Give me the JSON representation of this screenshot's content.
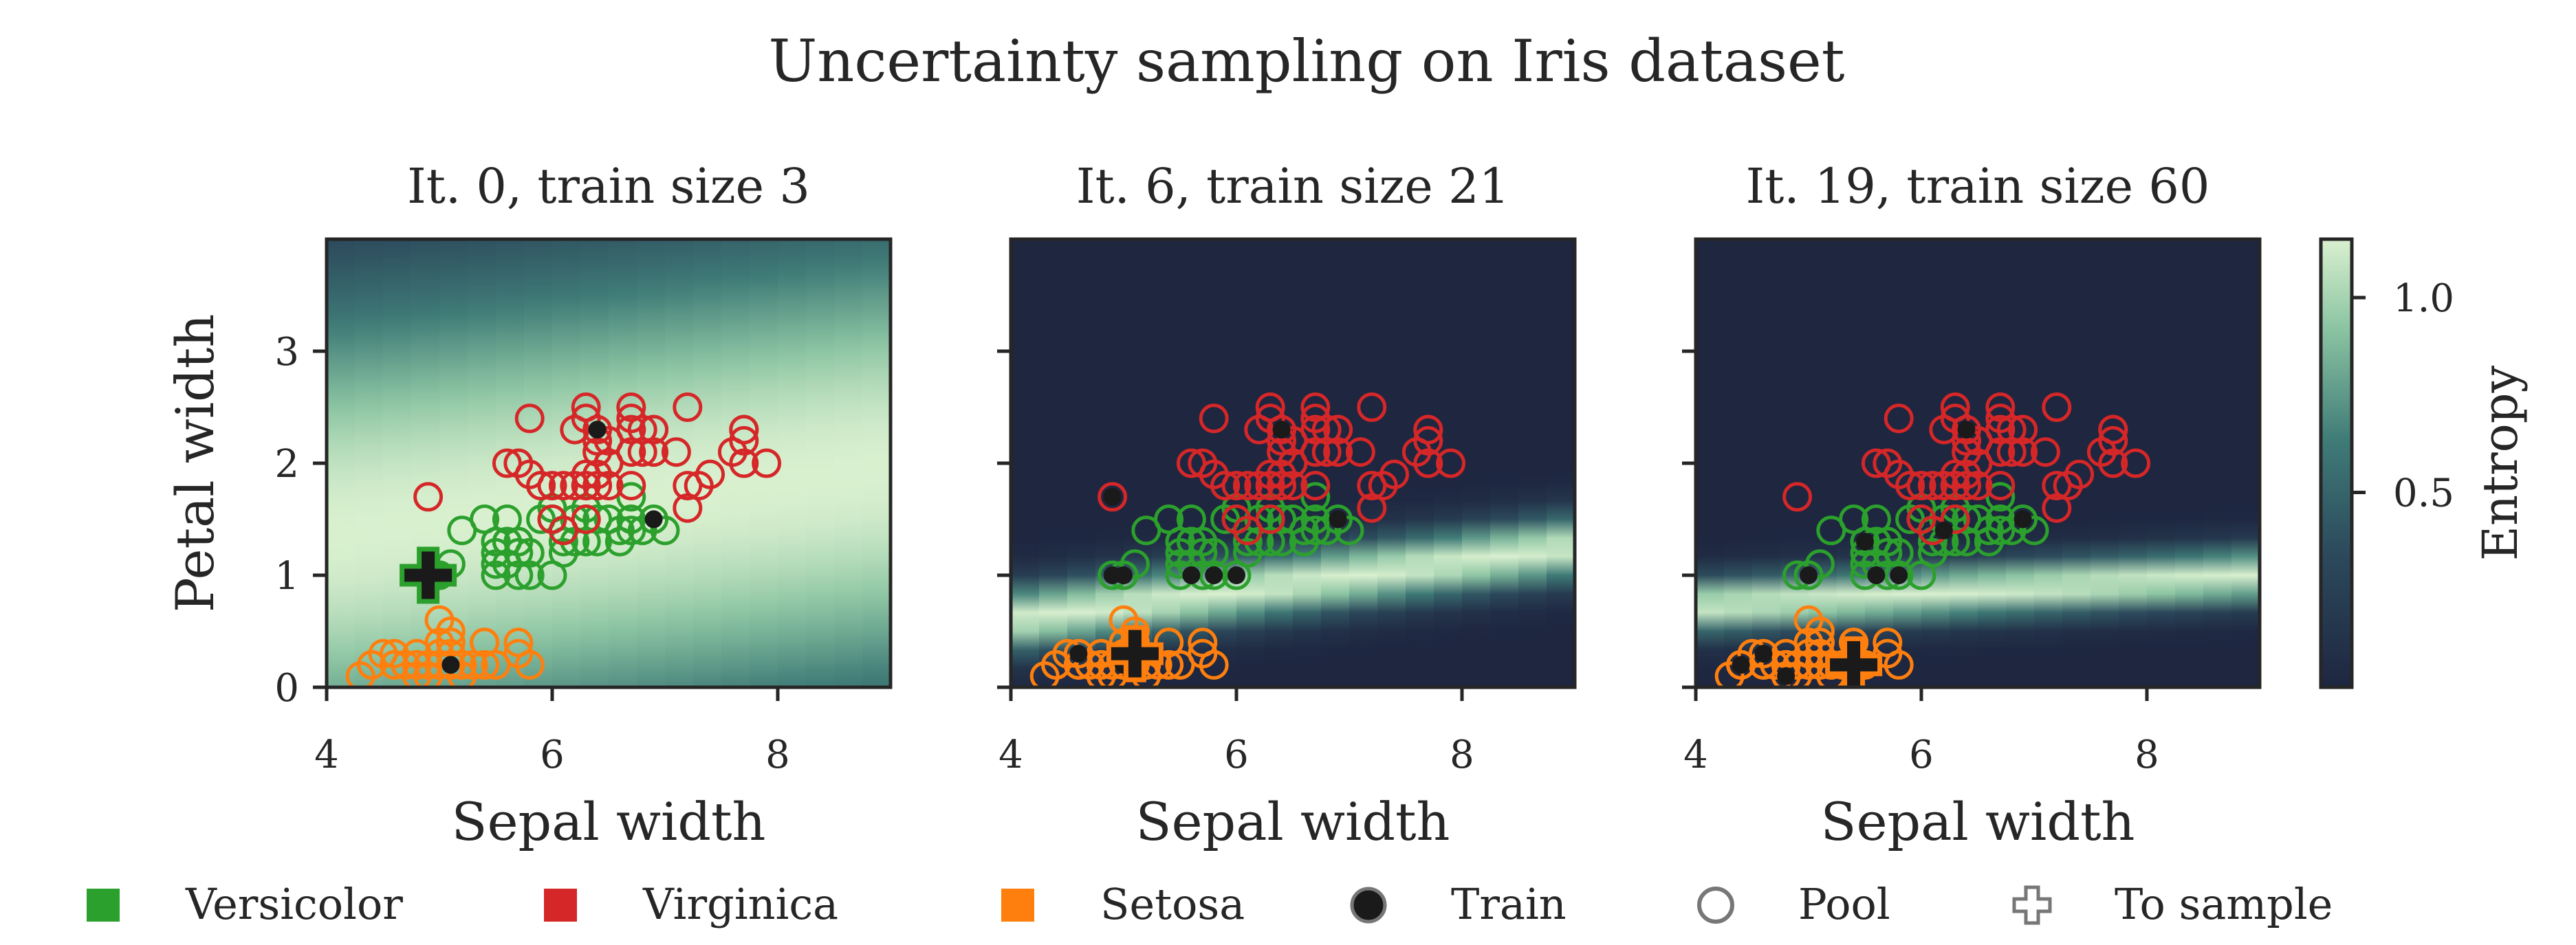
{
  "figure": {
    "title": "Uncertainty sampling on Iris dataset",
    "colorbar_label": "Entropy",
    "colorbar_ticks": [
      "0.5",
      "1.0"
    ],
    "colorbar_tick_values": [
      0.5,
      1.0
    ],
    "colorbar_range": [
      0.0,
      1.15
    ]
  },
  "colors": {
    "versicolor": "#2ca02c",
    "virginica": "#d62728",
    "setosa": "#ff7f0e",
    "train": "#1a1a1a",
    "pool": "#777777",
    "axis": "#262626",
    "entropy_low": "#1e2640",
    "entropy_high": "#d4edc8"
  },
  "legend": [
    {
      "label": "Versicolor",
      "marker": "square",
      "color": "#2ca02c"
    },
    {
      "label": "Virginica",
      "marker": "square",
      "color": "#d62728"
    },
    {
      "label": "Setosa",
      "marker": "square",
      "color": "#ff7f0e"
    },
    {
      "label": "Train",
      "marker": "filled-circle",
      "color": "#1a1a1a"
    },
    {
      "label": "Pool",
      "marker": "open-circle",
      "color": "#777777"
    },
    {
      "label": "To sample",
      "marker": "plus",
      "color": "#777777"
    }
  ],
  "chart_data": [
    {
      "type": "scatter",
      "title": "It. 0, train size 3",
      "xlabel": "Sepal width",
      "ylabel": "Petal width",
      "xlim": [
        4,
        9
      ],
      "ylim": [
        0,
        4
      ],
      "xticks": [
        "4",
        "6",
        "8"
      ],
      "xtick_values": [
        4,
        6,
        8
      ],
      "yticks": [
        "0",
        "1",
        "2",
        "3"
      ],
      "ytick_values": [
        0,
        1,
        2,
        3
      ],
      "background": {
        "boundary": [
          [
            4,
            1.35
          ],
          [
            9,
            1.95
          ]
        ],
        "width": 2.4,
        "peak": 1.0
      },
      "train": [
        [
          5.1,
          0.2
        ],
        [
          6.9,
          1.5
        ],
        [
          6.4,
          2.3
        ]
      ],
      "to_sample": [
        [
          4.9,
          1.0
        ]
      ],
      "to_sample_class": "versicolor"
    },
    {
      "type": "scatter",
      "title": "It. 6, train size 21",
      "xlabel": "Sepal width",
      "xlim": [
        4,
        9
      ],
      "ylim": [
        0,
        4
      ],
      "xticks": [
        "4",
        "6",
        "8"
      ],
      "xtick_values": [
        4,
        6,
        8
      ],
      "yticks": [],
      "ytick_values": [
        0,
        1,
        2,
        3
      ],
      "background": {
        "boundary": [
          [
            4,
            0.6
          ],
          [
            9,
            1.25
          ]
        ],
        "width": 0.3,
        "peak": 1.0
      },
      "train": [
        [
          4.6,
          0.3
        ],
        [
          5.0,
          0.2
        ],
        [
          4.9,
          1.0
        ],
        [
          5.0,
          1.0
        ],
        [
          5.6,
          1.0
        ],
        [
          5.8,
          1.0
        ],
        [
          6.0,
          1.0
        ],
        [
          6.9,
          1.5
        ],
        [
          6.4,
          2.3
        ],
        [
          4.9,
          1.7
        ]
      ],
      "to_sample": [
        [
          5.1,
          0.3
        ]
      ],
      "to_sample_class": "setosa"
    },
    {
      "type": "scatter",
      "title": "It. 19, train size 60",
      "xlabel": "Sepal width",
      "xlim": [
        4,
        9
      ],
      "ylim": [
        0,
        4
      ],
      "xticks": [
        "4",
        "6",
        "8"
      ],
      "xtick_values": [
        4,
        6,
        8
      ],
      "yticks": [],
      "ytick_values": [
        0,
        1,
        2,
        3
      ],
      "background": {
        "boundary": [
          [
            4,
            0.72
          ],
          [
            9,
            1.0
          ]
        ],
        "width": 0.25,
        "peak": 1.0
      },
      "train": [
        [
          4.4,
          0.2
        ],
        [
          4.6,
          0.3
        ],
        [
          4.8,
          0.1
        ],
        [
          5.0,
          1.0
        ],
        [
          5.5,
          1.3
        ],
        [
          5.6,
          1.0
        ],
        [
          5.8,
          1.0
        ],
        [
          6.9,
          1.5
        ],
        [
          6.4,
          2.3
        ],
        [
          6.2,
          1.4
        ]
      ],
      "to_sample": [
        [
          5.4,
          0.2
        ]
      ],
      "to_sample_class": "setosa"
    }
  ],
  "classes": {
    "setosa": [
      [
        5.1,
        0.2
      ],
      [
        4.9,
        0.2
      ],
      [
        4.7,
        0.2
      ],
      [
        4.6,
        0.2
      ],
      [
        5.0,
        0.2
      ],
      [
        5.4,
        0.4
      ],
      [
        4.6,
        0.3
      ],
      [
        5.0,
        0.2
      ],
      [
        4.4,
        0.2
      ],
      [
        4.9,
        0.1
      ],
      [
        5.4,
        0.2
      ],
      [
        4.8,
        0.2
      ],
      [
        4.8,
        0.1
      ],
      [
        4.3,
        0.1
      ],
      [
        5.8,
        0.2
      ],
      [
        5.7,
        0.4
      ],
      [
        5.4,
        0.4
      ],
      [
        5.1,
        0.3
      ],
      [
        5.7,
        0.3
      ],
      [
        5.1,
        0.3
      ],
      [
        5.4,
        0.2
      ],
      [
        5.1,
        0.4
      ],
      [
        4.6,
        0.2
      ],
      [
        5.1,
        0.5
      ],
      [
        4.8,
        0.2
      ],
      [
        5.0,
        0.2
      ],
      [
        5.0,
        0.4
      ],
      [
        5.2,
        0.2
      ],
      [
        5.2,
        0.2
      ],
      [
        4.7,
        0.2
      ],
      [
        4.8,
        0.2
      ],
      [
        5.4,
        0.4
      ],
      [
        5.2,
        0.1
      ],
      [
        5.5,
        0.2
      ],
      [
        4.9,
        0.2
      ],
      [
        5.0,
        0.2
      ],
      [
        5.5,
        0.2
      ],
      [
        4.4,
        0.2
      ],
      [
        5.1,
        0.2
      ],
      [
        5.0,
        0.3
      ],
      [
        4.5,
        0.3
      ],
      [
        4.4,
        0.2
      ],
      [
        5.0,
        0.6
      ],
      [
        5.1,
        0.4
      ],
      [
        4.8,
        0.3
      ],
      [
        5.1,
        0.2
      ],
      [
        4.6,
        0.2
      ],
      [
        5.3,
        0.2
      ],
      [
        5.0,
        0.2
      ]
    ],
    "versicolor": [
      [
        7.0,
        1.4
      ],
      [
        6.4,
        1.5
      ],
      [
        6.9,
        1.5
      ],
      [
        5.5,
        1.3
      ],
      [
        6.5,
        1.5
      ],
      [
        5.7,
        1.3
      ],
      [
        6.3,
        1.6
      ],
      [
        4.9,
        1.0
      ],
      [
        6.6,
        1.3
      ],
      [
        5.2,
        1.4
      ],
      [
        5.0,
        1.0
      ],
      [
        5.9,
        1.5
      ],
      [
        6.0,
        1.0
      ],
      [
        6.1,
        1.4
      ],
      [
        5.6,
        1.3
      ],
      [
        6.7,
        1.4
      ],
      [
        5.6,
        1.5
      ],
      [
        5.8,
        1.0
      ],
      [
        6.2,
        1.5
      ],
      [
        5.6,
        1.1
      ],
      [
        5.9,
        1.8
      ],
      [
        6.1,
        1.3
      ],
      [
        6.3,
        1.5
      ],
      [
        6.1,
        1.2
      ],
      [
        6.4,
        1.3
      ],
      [
        6.6,
        1.4
      ],
      [
        6.8,
        1.4
      ],
      [
        6.7,
        1.7
      ],
      [
        6.0,
        1.5
      ],
      [
        5.7,
        1.0
      ],
      [
        5.5,
        1.1
      ],
      [
        5.5,
        1.0
      ],
      [
        5.8,
        1.2
      ],
      [
        6.0,
        1.6
      ],
      [
        5.4,
        1.5
      ],
      [
        6.0,
        1.6
      ],
      [
        6.7,
        1.5
      ],
      [
        6.3,
        1.3
      ],
      [
        5.6,
        1.3
      ],
      [
        5.5,
        1.3
      ],
      [
        5.5,
        1.2
      ],
      [
        6.1,
        1.4
      ],
      [
        5.8,
        1.2
      ],
      [
        5.0,
        1.0
      ],
      [
        5.6,
        1.3
      ],
      [
        5.7,
        1.2
      ],
      [
        5.7,
        1.3
      ],
      [
        6.2,
        1.3
      ],
      [
        5.1,
        1.1
      ],
      [
        5.7,
        1.3
      ]
    ],
    "virginica": [
      [
        6.3,
        2.5
      ],
      [
        5.8,
        1.9
      ],
      [
        7.1,
        2.1
      ],
      [
        6.3,
        1.8
      ],
      [
        6.5,
        2.2
      ],
      [
        7.6,
        2.1
      ],
      [
        4.9,
        1.7
      ],
      [
        7.3,
        1.8
      ],
      [
        6.7,
        1.8
      ],
      [
        7.2,
        2.5
      ],
      [
        6.5,
        2.0
      ],
      [
        6.4,
        1.9
      ],
      [
        6.8,
        2.1
      ],
      [
        5.7,
        2.0
      ],
      [
        5.8,
        2.4
      ],
      [
        6.4,
        2.3
      ],
      [
        6.5,
        1.8
      ],
      [
        7.7,
        2.2
      ],
      [
        7.7,
        2.3
      ],
      [
        6.0,
        1.5
      ],
      [
        6.9,
        2.3
      ],
      [
        5.6,
        2.0
      ],
      [
        7.7,
        2.0
      ],
      [
        6.3,
        1.8
      ],
      [
        6.7,
        2.1
      ],
      [
        7.2,
        1.8
      ],
      [
        6.2,
        1.8
      ],
      [
        6.1,
        1.8
      ],
      [
        6.4,
        2.1
      ],
      [
        7.2,
        1.6
      ],
      [
        7.4,
        1.9
      ],
      [
        7.9,
        2.0
      ],
      [
        6.4,
        2.2
      ],
      [
        6.3,
        1.5
      ],
      [
        6.1,
        1.4
      ],
      [
        7.7,
        2.3
      ],
      [
        6.3,
        2.4
      ],
      [
        6.4,
        1.8
      ],
      [
        6.0,
        1.8
      ],
      [
        6.9,
        2.1
      ],
      [
        6.7,
        2.4
      ],
      [
        6.9,
        2.3
      ],
      [
        6.8,
        2.3
      ],
      [
        6.7,
        2.5
      ],
      [
        6.7,
        2.3
      ],
      [
        6.3,
        1.9
      ],
      [
        6.5,
        2.0
      ],
      [
        6.2,
        2.3
      ],
      [
        5.9,
        1.8
      ]
    ]
  }
}
